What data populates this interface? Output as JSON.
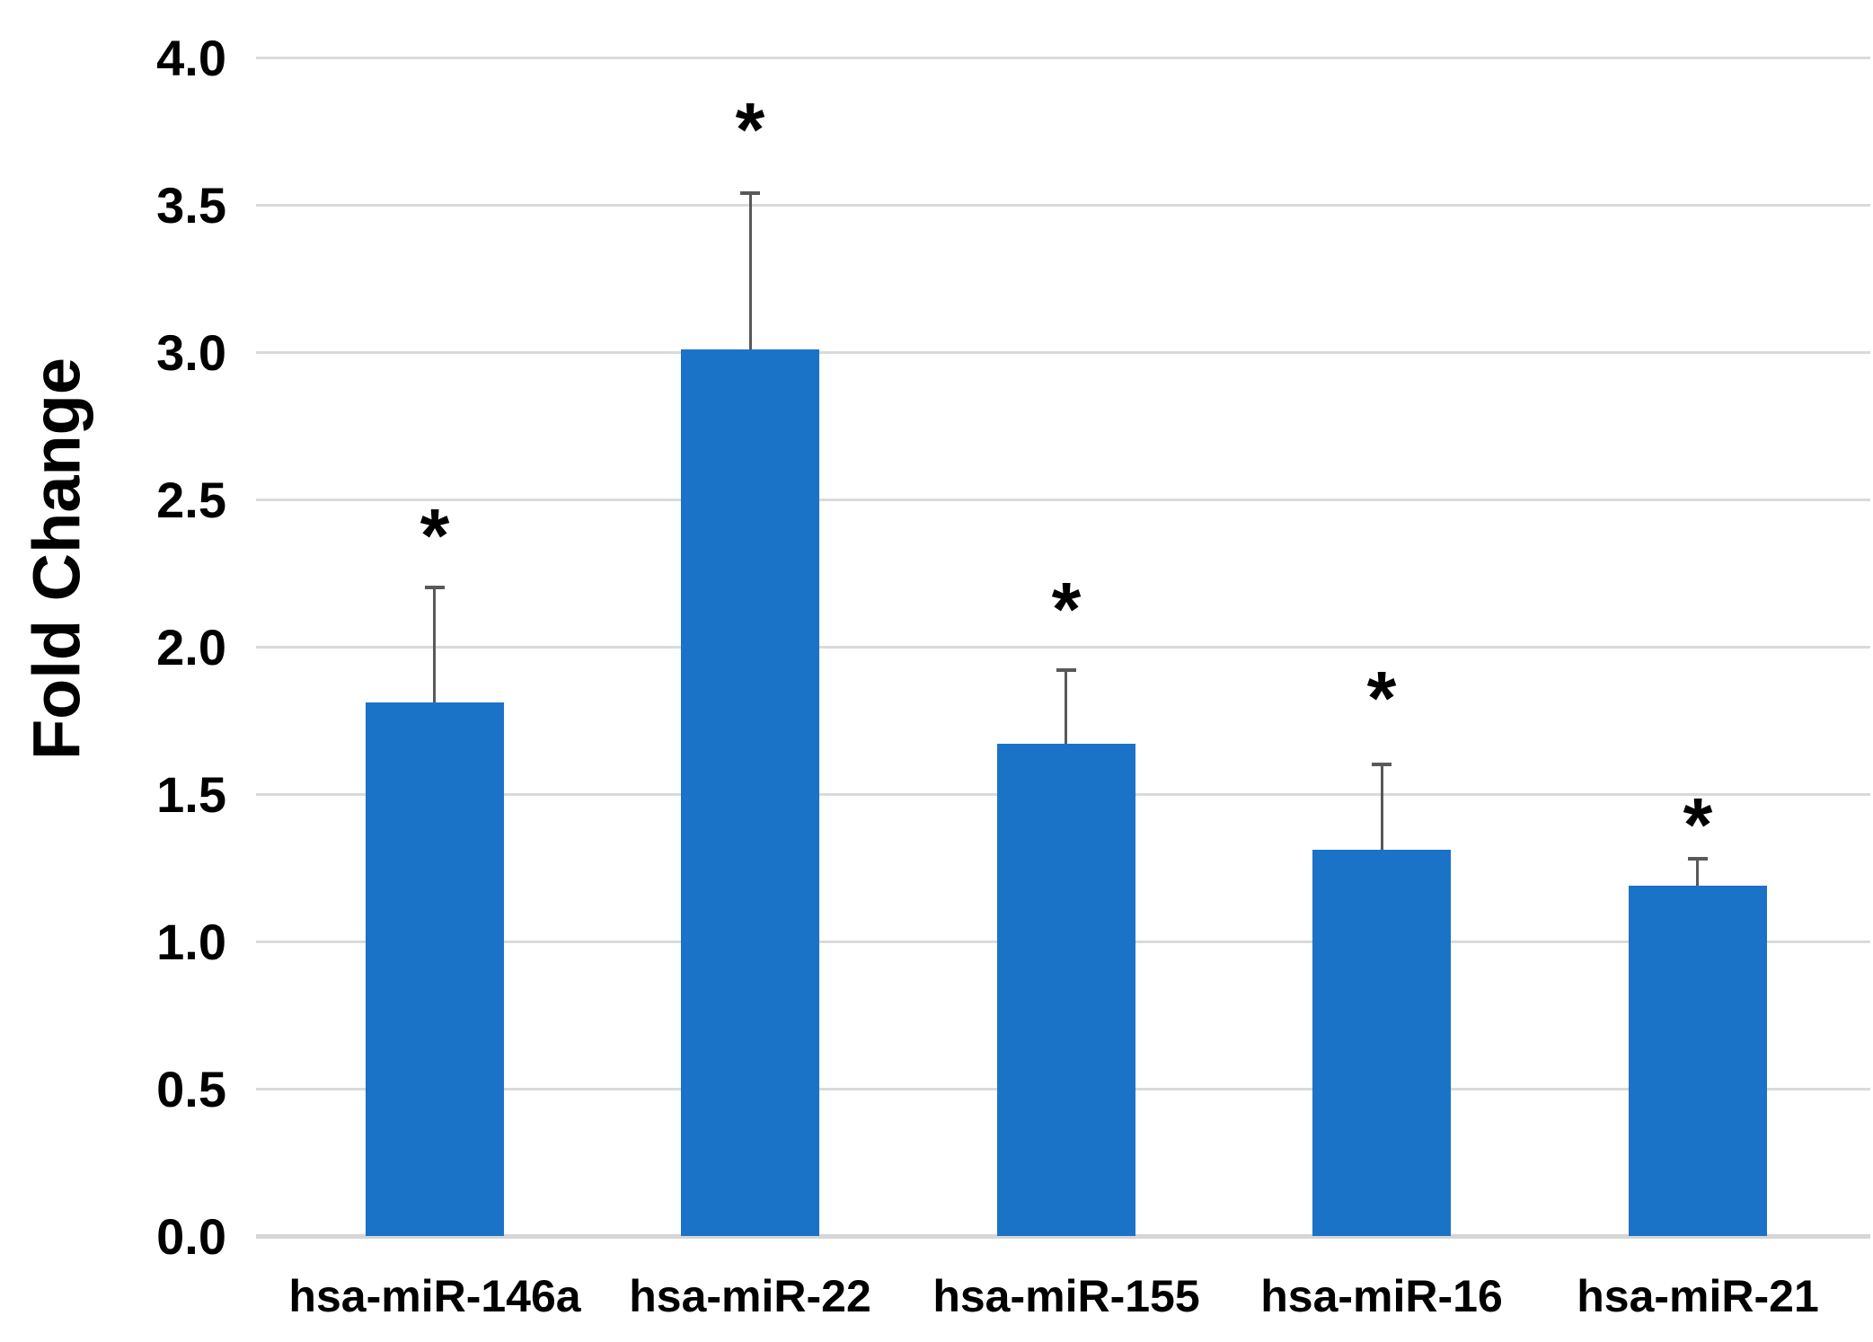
{
  "chart_data": {
    "type": "bar",
    "title": "",
    "xlabel": "",
    "ylabel": "Fold Change",
    "categories": [
      "hsa-miR-146a",
      "hsa-miR-22",
      "hsa-miR-155",
      "hsa-miR-16",
      "hsa-miR-21"
    ],
    "values": [
      1.81,
      3.01,
      1.67,
      1.31,
      1.19
    ],
    "error_plus": [
      0.39,
      0.53,
      0.25,
      0.29,
      0.09
    ],
    "significance_marker": "*",
    "significance_y": [
      2.42,
      3.8,
      2.17,
      1.87,
      1.44
    ],
    "ylim": [
      0.0,
      4.0
    ],
    "ytick_step": 0.5,
    "yticks": [
      "4.0",
      "3.5",
      "3.0",
      "2.5",
      "2.0",
      "1.5",
      "1.0",
      "0.5",
      "0.0"
    ],
    "grid": true,
    "legend": false,
    "bar_color": "#1B73C8",
    "gridline_color": "#DADADA",
    "axis_line_color": "#D6D6D6",
    "error_bar_color": "#595959",
    "text_color": "#000000",
    "background_color": "#FFFFFF"
  }
}
